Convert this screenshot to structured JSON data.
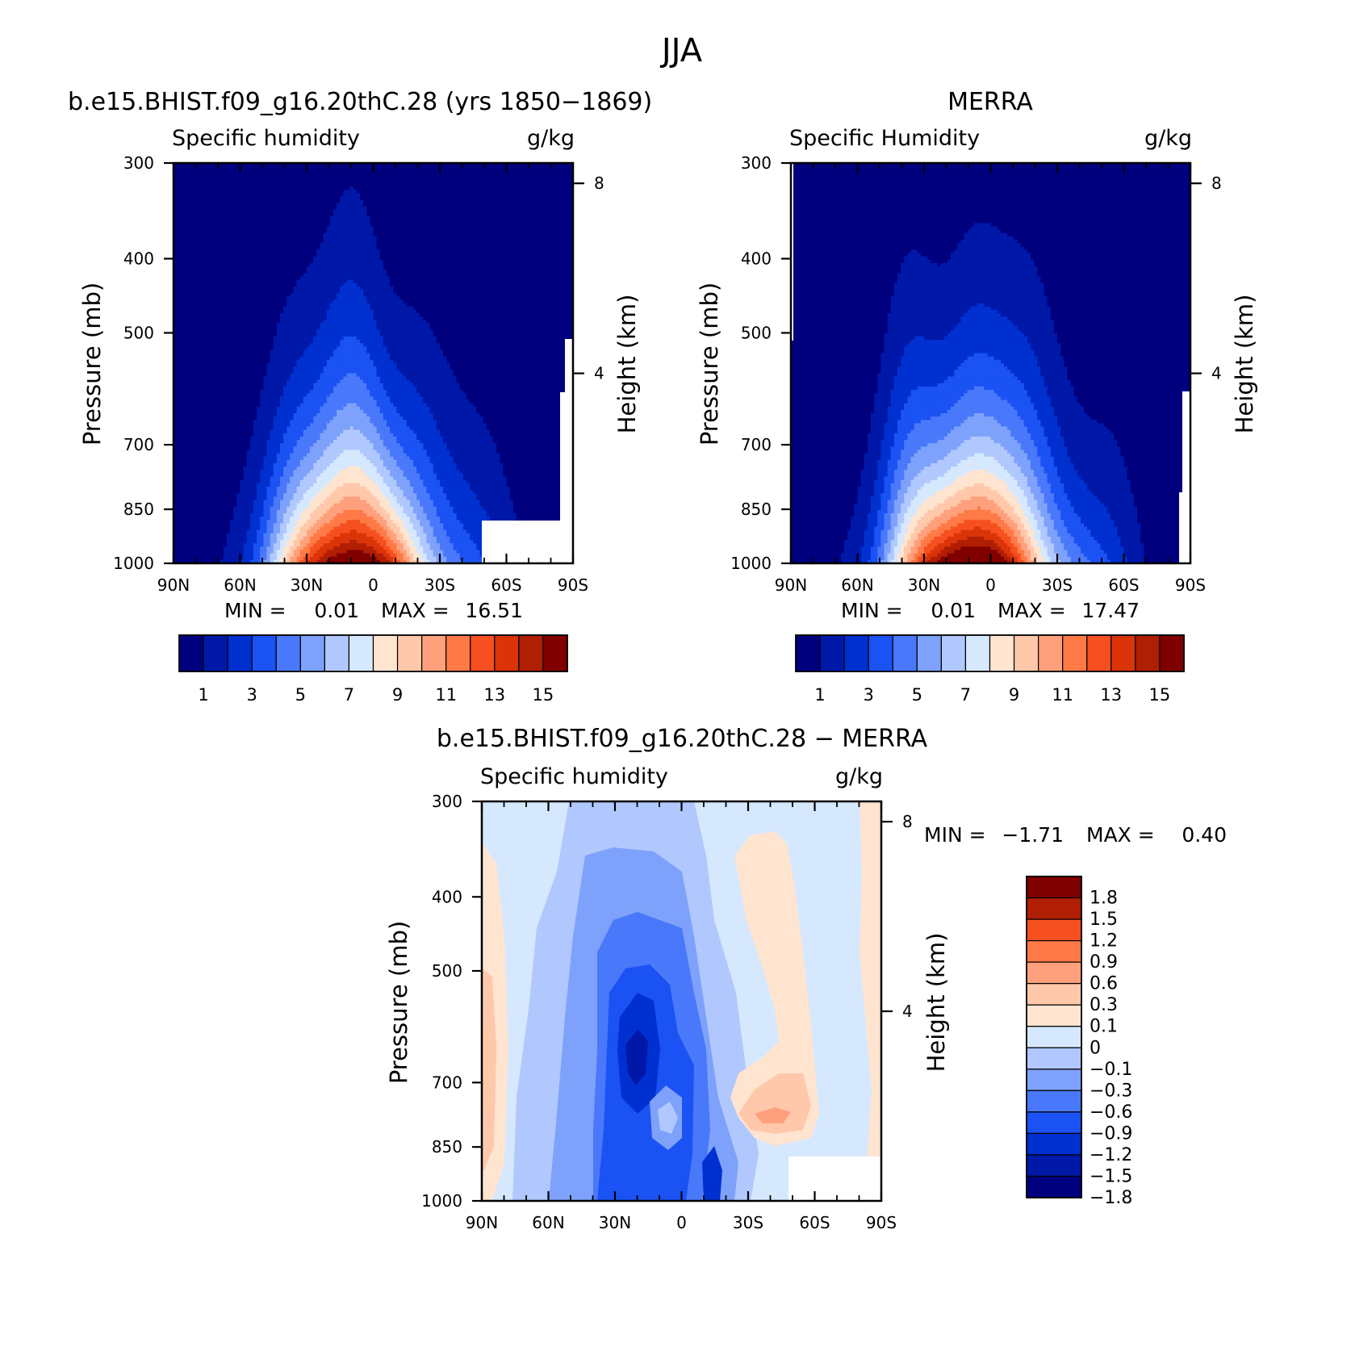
{
  "figure_title": "JJA",
  "colors": {
    "abs_levels": [
      "#00007f",
      "#0018a8",
      "#0030d0",
      "#1a52f4",
      "#4a78fa",
      "#7ea2fb",
      "#b0c8fd",
      "#d6e8fe",
      "#ffe4d0",
      "#ffc8aa",
      "#ffa07c",
      "#ff7a46",
      "#f65020",
      "#da3408",
      "#b01e04",
      "#800000"
    ],
    "diff_levels": [
      "#00007f",
      "#0018a8",
      "#0030d0",
      "#1a52f4",
      "#4a78fa",
      "#7ea2fb",
      "#b0c8fd",
      "#d6e8fe",
      "#ffe4d0",
      "#ffc8aa",
      "#ffa07c",
      "#ff7a46",
      "#f65020",
      "#b01e04",
      "#800000"
    ]
  },
  "chart_data": [
    {
      "type": "contour",
      "title": "b.e15.BHIST.f09_g16.20thC.28 (yrs 1850−1869)",
      "left_label": "Specific humidity",
      "units": "g/kg",
      "ylabel": "Pressure (mb)",
      "ylabel2": "Height (km)",
      "x_ticks": [
        "90N",
        "60N",
        "30N",
        "0",
        "30S",
        "60S",
        "90S"
      ],
      "x_values": [
        90,
        60,
        30,
        0,
        -30,
        -60,
        -90
      ],
      "y_ticks": [
        "300",
        "400",
        "500",
        "700",
        "850",
        "1000"
      ],
      "y_values": [
        300,
        400,
        500,
        700,
        850,
        1000
      ],
      "y2_ticks": [
        "8",
        "4"
      ],
      "y2_values": [
        8,
        4
      ],
      "min_label": "MIN =",
      "min_value": "0.01",
      "max_label": "MAX =",
      "max_value": "16.51",
      "levels": [
        1,
        2,
        3,
        4,
        5,
        6,
        7,
        8,
        9,
        10,
        11,
        12,
        13,
        14,
        15
      ],
      "colorbar_labels": [
        "1",
        "3",
        "5",
        "7",
        "9",
        "11",
        "13",
        "15"
      ],
      "peak_lat": 8,
      "peak_value": 16.51
    },
    {
      "type": "contour",
      "title": "MERRA",
      "left_label": "Specific Humidity",
      "units": "g/kg",
      "ylabel": "Pressure (mb)",
      "ylabel2": "Height (km)",
      "x_ticks": [
        "90N",
        "60N",
        "30N",
        "0",
        "30S",
        "60S",
        "90S"
      ],
      "x_values": [
        90,
        60,
        30,
        0,
        -30,
        -60,
        -90
      ],
      "y_ticks": [
        "300",
        "400",
        "500",
        "700",
        "850",
        "1000"
      ],
      "y_values": [
        300,
        400,
        500,
        700,
        850,
        1000
      ],
      "y2_ticks": [
        "8",
        "4"
      ],
      "y2_values": [
        8,
        4
      ],
      "min_label": "MIN =",
      "min_value": "0.01",
      "max_label": "MAX =",
      "max_value": "17.47",
      "levels": [
        1,
        2,
        3,
        4,
        5,
        6,
        7,
        8,
        9,
        10,
        11,
        12,
        13,
        14,
        15
      ],
      "colorbar_labels": [
        "1",
        "3",
        "5",
        "7",
        "9",
        "11",
        "13",
        "15"
      ],
      "peak_lat": 7,
      "peak_value": 17.47
    },
    {
      "type": "contour",
      "title": "b.e15.BHIST.f09_g16.20thC.28 − MERRA",
      "left_label": "Specific humidity",
      "units": "g/kg",
      "ylabel": "Pressure (mb)",
      "ylabel2": "Height (km)",
      "x_ticks": [
        "90N",
        "60N",
        "30N",
        "0",
        "30S",
        "60S",
        "90S"
      ],
      "x_values": [
        90,
        60,
        30,
        0,
        -30,
        -60,
        -90
      ],
      "y_ticks": [
        "300",
        "400",
        "500",
        "700",
        "850",
        "1000"
      ],
      "y_values": [
        300,
        400,
        500,
        700,
        850,
        1000
      ],
      "y2_ticks": [
        "8",
        "4"
      ],
      "y2_values": [
        8,
        4
      ],
      "min_label": "MIN =",
      "min_value": "−1.71",
      "max_label": "MAX =",
      "max_value": "0.40",
      "levels": [
        -1.8,
        -1.5,
        -1.2,
        -0.9,
        -0.6,
        -0.3,
        -0.1,
        0,
        0.1,
        0.3,
        0.6,
        0.9,
        1.2,
        1.5,
        1.8
      ],
      "colorbar_labels": [
        "1.8",
        "1.5",
        "1.2",
        "0.9",
        "0.6",
        "0.3",
        "0.1",
        "0",
        "−0.1",
        "−0.3",
        "−0.6",
        "−0.9",
        "−1.2",
        "−1.5",
        "−1.8"
      ]
    }
  ]
}
